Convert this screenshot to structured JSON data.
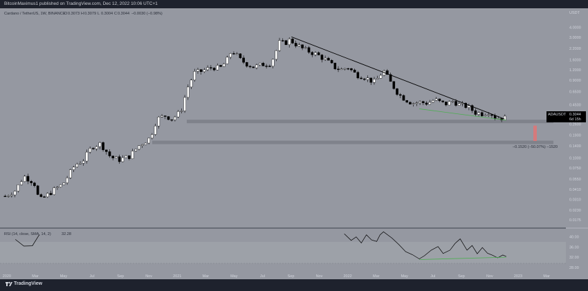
{
  "header": {
    "published": "BitcoinMaximus1 published on TradingView.com, Dec 12, 2022 10:06 UTC+1"
  },
  "branding": {
    "footer": "TradingView",
    "logo_icon": "tradingview-logo-icon"
  },
  "colors": {
    "background": "#9598a1",
    "frame": "#1e222d",
    "candle_up": "#ffffff",
    "candle_down": "#000000",
    "support_zone": "#7b7e87",
    "trendline": "#000000",
    "divergence": "#4caf50",
    "target_bar": "#e57373",
    "price_tag": "#000000"
  },
  "chart_data": [
    {
      "type": "candlestick",
      "title": "Cardano / TetherUS, 1W, BINANCE",
      "ohlc_readout": {
        "open_label": "O",
        "open": "0.3073",
        "high_label": "H",
        "high": "0.3079",
        "low_label": "L",
        "low": "0.3004",
        "close_label": "C",
        "close": "0.3044",
        "change": "−0.0030 (−0.98%)"
      },
      "y_scale": "log",
      "y_unit": "USDT",
      "y_ticks": [
        "4.0000",
        "3.0000",
        "2.2000",
        "1.6000",
        "1.2000",
        "0.9000",
        "0.6500",
        "0.4500",
        "0.2600",
        "0.1900",
        "0.1400",
        "0.1000",
        "0.0750",
        "0.0550",
        "0.0410",
        "0.0310",
        "0.0230",
        "0.0175"
      ],
      "ylim": [
        0.0155,
        5.2
      ],
      "x_ticks": [
        "2020",
        "Mar",
        "May",
        "Jul",
        "Sep",
        "Nov",
        "2021",
        "Mar",
        "May",
        "Jul",
        "Sep",
        "Nov",
        "2022",
        "Mar",
        "May",
        "Jul",
        "Sep",
        "Nov",
        "2023",
        "Mar"
      ],
      "x_tick_times": [
        2020.0,
        2020.167,
        2020.333,
        2020.5,
        2020.667,
        2020.833,
        2021.0,
        2021.167,
        2021.333,
        2021.5,
        2021.667,
        2021.833,
        2022.0,
        2022.167,
        2022.333,
        2022.5,
        2022.667,
        2022.833,
        2023.0,
        2023.167
      ],
      "xlim": [
        2019.96,
        2023.28
      ],
      "price_label": {
        "symbol": "ADAUSDT",
        "value": "0.3044",
        "countdown": "6d 15h"
      },
      "support_zones": [
        0.28,
        0.155
      ],
      "measure_annotation": "−0.1520 (−50.07%) −1520",
      "anchor_prices": {
        "x": [
          2019.99,
          2020.05,
          2020.1,
          2020.16,
          2020.19,
          2020.22,
          2020.28,
          2020.33,
          2020.4,
          2020.45,
          2020.5,
          2020.55,
          2020.61,
          2020.66,
          2020.72,
          2020.78,
          2020.84,
          2020.88,
          2020.93,
          2020.97,
          2021.02,
          2021.06,
          2021.1,
          2021.14,
          2021.17,
          2021.21,
          2021.25,
          2021.29,
          2021.32,
          2021.37,
          2021.4,
          2021.45,
          2021.5,
          2021.55,
          2021.6,
          2021.63,
          2021.66,
          2021.7,
          2021.74,
          2021.78,
          2021.82,
          2021.87,
          2021.92,
          2021.96,
          2022.0,
          2022.05,
          2022.09,
          2022.13,
          2022.16,
          2022.21,
          2022.25,
          2022.3,
          2022.34,
          2022.38,
          2022.42,
          2022.47,
          2022.51,
          2022.55,
          2022.58,
          2022.62,
          2022.66,
          2022.7,
          2022.75,
          2022.79,
          2022.83,
          2022.87,
          2022.91,
          2022.94
        ],
        "close": [
          0.034,
          0.04,
          0.06,
          0.05,
          0.03,
          0.033,
          0.041,
          0.048,
          0.082,
          0.095,
          0.138,
          0.15,
          0.102,
          0.095,
          0.105,
          0.145,
          0.175,
          0.3,
          0.33,
          0.3,
          0.37,
          0.72,
          1.1,
          1.15,
          1.22,
          1.3,
          1.25,
          1.55,
          2.1,
          1.6,
          1.45,
          1.3,
          1.4,
          1.45,
          2.6,
          2.55,
          2.8,
          2.45,
          2.15,
          2.0,
          1.85,
          1.6,
          1.3,
          1.2,
          1.3,
          1.05,
          1.0,
          0.9,
          0.85,
          1.18,
          0.85,
          0.6,
          0.52,
          0.47,
          0.48,
          0.47,
          0.52,
          0.47,
          0.46,
          0.5,
          0.44,
          0.43,
          0.36,
          0.35,
          0.37,
          0.31,
          0.31,
          0.304
        ]
      },
      "trendline": {
        "x": [
          2021.67,
          2022.92
        ],
        "y": [
          3.05,
          0.3
        ]
      }
    },
    {
      "type": "line",
      "title": "RSI (14, close, SMA, 14, 2)",
      "value": "32.28",
      "y_ticks": [
        "40.00",
        "36.00",
        "32.00",
        "28.00"
      ],
      "ylim": [
        27.2,
        41.8
      ],
      "series": [
        {
          "name": "RSI",
          "x": [
            2021.98,
            2022.02,
            2022.05,
            2022.08,
            2022.11,
            2022.14,
            2022.17,
            2022.19,
            2022.21,
            2022.26,
            2022.3,
            2022.34,
            2022.38,
            2022.42,
            2022.45,
            2022.49,
            2022.53,
            2022.56,
            2022.6,
            2022.63,
            2022.66,
            2022.7,
            2022.73,
            2022.76,
            2022.79,
            2022.82,
            2022.85,
            2022.88,
            2022.91,
            2022.93
          ],
          "y": [
            41.2,
            38.6,
            40.0,
            37.6,
            40.8,
            38.8,
            38.2,
            40.8,
            42.0,
            39.5,
            37.0,
            34.2,
            33.0,
            31.4,
            32.6,
            34.8,
            36.2,
            33.5,
            34.8,
            37.4,
            39.2,
            34.8,
            36.6,
            33.4,
            35.8,
            33.6,
            32.8,
            31.8,
            32.9,
            32.3
          ]
        }
      ],
      "divergence": {
        "x": [
          2022.42,
          2022.93
        ],
        "y": [
          31.4,
          32.3
        ]
      },
      "early_segment": {
        "x": [
          2020.05,
          2020.1,
          2020.15,
          2020.19
        ],
        "y": [
          39.0,
          36.4,
          36.5,
          40.8
        ]
      }
    }
  ]
}
